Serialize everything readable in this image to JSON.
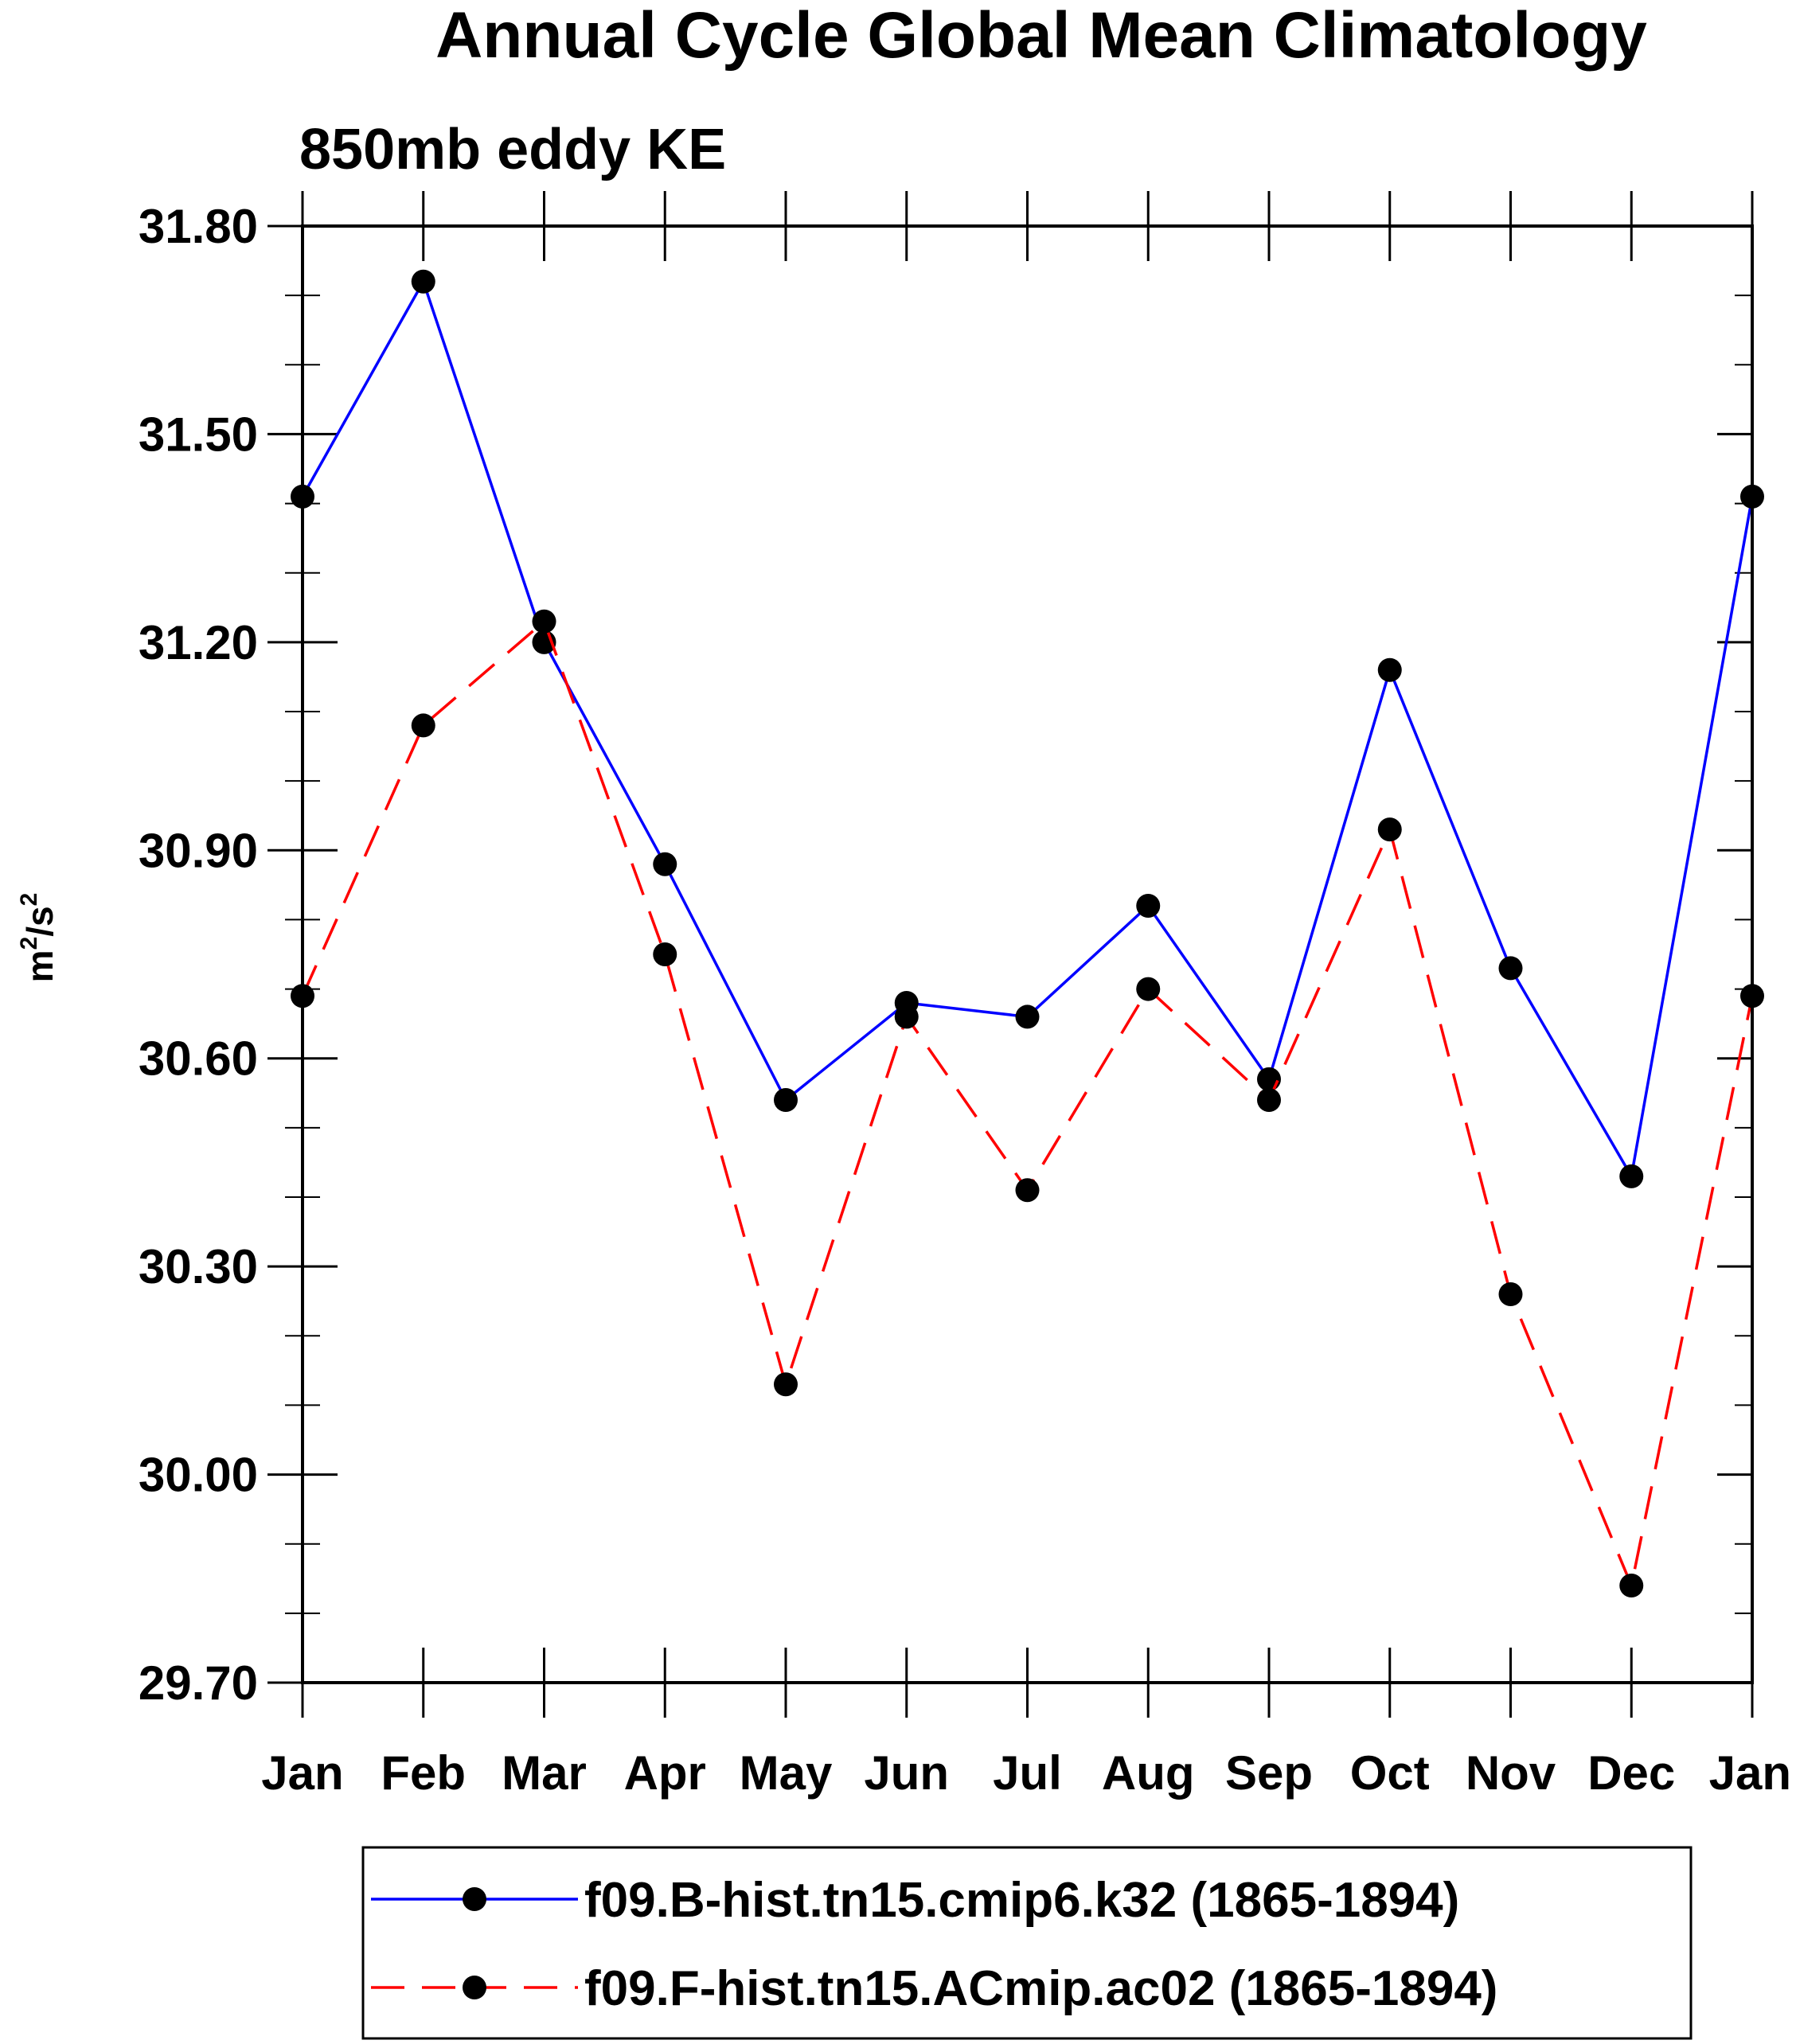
{
  "chart_data": {
    "type": "line",
    "title": "Annual Cycle Global Mean Climatology",
    "subtitle": "850mb eddy KE",
    "ylabel_base": "m",
    "ylabel_exp1": "2",
    "ylabel_mid": "/s",
    "ylabel_exp2": "2",
    "ylim": [
      29.7,
      31.8
    ],
    "yticks": [
      29.7,
      30.0,
      30.3,
      30.6,
      30.9,
      31.2,
      31.5,
      31.8
    ],
    "ytick_labels": [
      "29.70",
      "30.00",
      "30.30",
      "30.60",
      "30.90",
      "31.20",
      "31.50",
      "31.80"
    ],
    "categories": [
      "Jan",
      "Feb",
      "Mar",
      "Apr",
      "May",
      "Jun",
      "Jul",
      "Aug",
      "Sep",
      "Oct",
      "Nov",
      "Dec",
      "Jan"
    ],
    "grid": false,
    "legend_position": "bottom",
    "series": [
      {
        "name": "f09.B-hist.tn15.cmip6.k32 (1865-1894)",
        "color": "#0000ff",
        "dash": "solid",
        "marker": "filled-circle",
        "values": [
          31.41,
          31.72,
          31.2,
          30.88,
          30.54,
          30.68,
          30.66,
          30.82,
          30.57,
          31.16,
          30.73,
          30.43,
          31.41
        ]
      },
      {
        "name": "f09.F-hist.tn15.ACmip.ac02 (1865-1894)",
        "color": "#ff0000",
        "dash": "dashed",
        "marker": "filled-circle",
        "values": [
          30.69,
          31.08,
          31.23,
          30.75,
          30.13,
          30.66,
          30.41,
          30.7,
          30.54,
          30.93,
          30.26,
          29.84,
          30.69
        ]
      }
    ]
  }
}
